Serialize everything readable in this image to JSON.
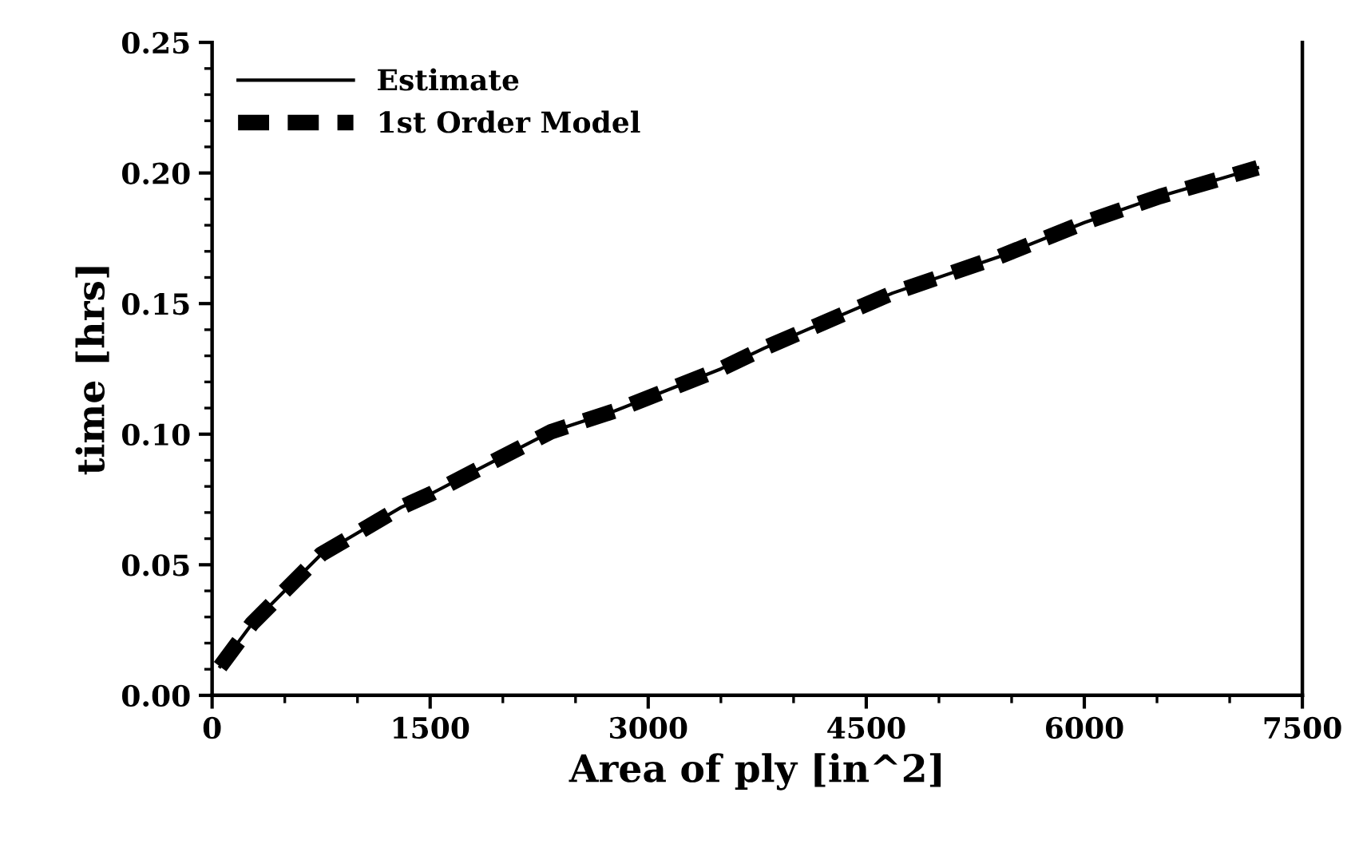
{
  "chart_data": {
    "type": "line",
    "xlabel": "Area of ply [in^2]",
    "ylabel": "time [hrs]",
    "xlim": [
      0,
      7500
    ],
    "ylim": [
      0,
      0.25
    ],
    "xticks": [
      0,
      1500,
      3000,
      4500,
      6000,
      7500
    ],
    "yticks": [
      {
        "value": 0,
        "label": "0.00"
      },
      0.05,
      {
        "value": 0.1,
        "label": "0.10"
      },
      0.15,
      {
        "value": 0.2,
        "label": "0.20"
      },
      0.25
    ],
    "legend": "top left",
    "grid": false,
    "series": [
      {
        "name": "Estimate",
        "color": "#000000",
        "line_style": "solid",
        "x": [
          55,
          275,
          750,
          1300,
          1500,
          1740,
          2335,
          2775,
          3500,
          3800,
          4680,
          5418,
          6000,
          6519,
          7192
        ],
        "values": [
          0.011,
          0.0275,
          0.054,
          0.072,
          0.077,
          0.084,
          0.101,
          0.109,
          0.125,
          0.133,
          0.154,
          0.168,
          0.181,
          0.191,
          0.202
        ]
      },
      {
        "name": "1st Order Model",
        "color": "#000000",
        "line_style": "dashed",
        "x": [
          55,
          275,
          750,
          1300,
          1500,
          1740,
          2335,
          2775,
          3500,
          3800,
          4680,
          5418,
          6000,
          6519,
          7192
        ],
        "values": [
          0.011,
          0.0275,
          0.054,
          0.072,
          0.077,
          0.084,
          0.101,
          0.109,
          0.125,
          0.133,
          0.154,
          0.168,
          0.181,
          0.191,
          0.202
        ]
      }
    ]
  }
}
